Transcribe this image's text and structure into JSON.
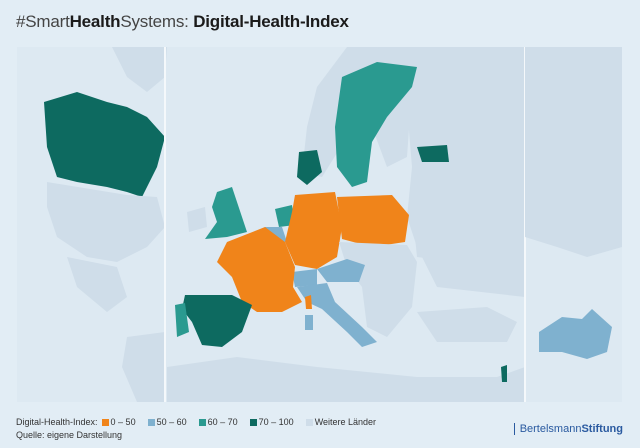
{
  "title": {
    "prefix_light": "#Smart",
    "prefix_bold": "Health",
    "prefix_light2": "Systems: ",
    "main": "Digital-Health-Index"
  },
  "legend": {
    "label": "Digital-Health-Index:",
    "items": [
      {
        "label": "0 – 50",
        "color": "#f0841a"
      },
      {
        "label": "50 – 60",
        "color": "#7fb1cf"
      },
      {
        "label": "60 – 70",
        "color": "#2a9a90"
      },
      {
        "label": "70 – 100",
        "color": "#0d6a60"
      },
      {
        "label": "Weitere Länder",
        "color": "#cfdde9"
      }
    ]
  },
  "source": "Quelle: eigene Darstellung",
  "logo": {
    "light": "Bertelsmann",
    "bold": "Stiftung"
  },
  "countries": {
    "orange": [
      "France",
      "Germany",
      "Poland"
    ],
    "lightblue": [
      "Belgium",
      "Austria",
      "Italy",
      "Switzerland",
      "Australia"
    ],
    "teal": [
      "United Kingdom",
      "Netherlands",
      "Sweden",
      "Portugal",
      "Estonia"
    ],
    "darkteal": [
      "Canada",
      "Spain",
      "Denmark",
      "Israel"
    ]
  }
}
